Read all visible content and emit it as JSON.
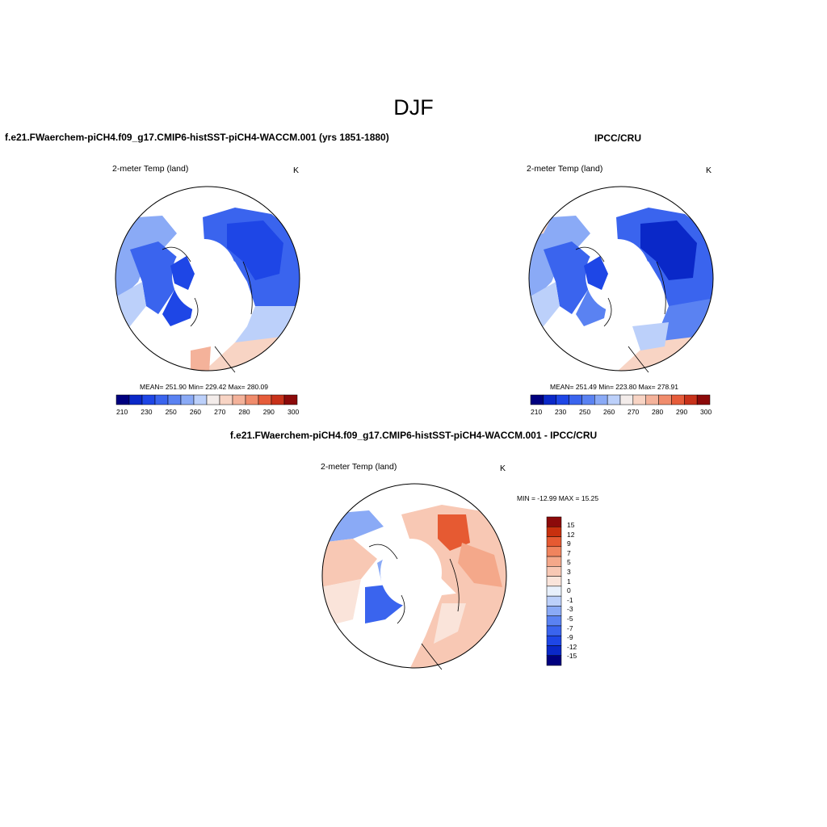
{
  "figure": {
    "title": "DJF",
    "panel_top_left": {
      "case_title": "f.e21.FWaerchem-piCH4.f09_g17.CMIP6-histSST-piCH4-WACCM.001 (yrs 1851-1880)",
      "variable": "2-meter Temp (land)",
      "units": "K",
      "stats": "MEAN= 251.90  Min= 229.42  Max= 280.09"
    },
    "panel_top_right": {
      "case_title": "IPCC/CRU",
      "variable": "2-meter Temp (land)",
      "units": "K",
      "stats": "MEAN= 251.49  Min= 223.80  Max= 278.91"
    },
    "panel_bottom": {
      "case_title": "f.e21.FWaerchem-piCH4.f09_g17.CMIP6-histSST-piCH4-WACCM.001 - IPCC/CRU",
      "variable": "2-meter Temp (land)",
      "units": "K",
      "stats": "MIN = -12.99 MAX =  15.25"
    }
  },
  "colors": {
    "abs_palette": [
      "#00007f",
      "#0a28c8",
      "#1e46e6",
      "#3a64ee",
      "#5a82f2",
      "#8aaaf6",
      "#bcd0fa",
      "#f3ecea",
      "#f8d4c4",
      "#f4b29a",
      "#f08c6c",
      "#e65c3a",
      "#c8321a",
      "#8c0a0a"
    ],
    "diff_palette": [
      "#00007f",
      "#0a28c8",
      "#1e46e6",
      "#3a64ee",
      "#5a82f2",
      "#8aaaf6",
      "#bcd0fa",
      "#e8f0fb",
      "#fae4da",
      "#f8c8b4",
      "#f4a88a",
      "#f0845e",
      "#e65a32",
      "#c8300e",
      "#8c0a0a"
    ]
  },
  "chart_data": [
    {
      "type": "heatmap",
      "title": "2-meter Temp (land)",
      "projection": "north-polar-stereographic",
      "units": "K",
      "mean": 251.9,
      "min": 229.42,
      "max": 280.09,
      "colorbar_levels": [
        205,
        210,
        220,
        230,
        240,
        250,
        255,
        260,
        265,
        270,
        275,
        280,
        290,
        300
      ],
      "colorbar_tick_labels": [
        "210",
        "230",
        "250",
        "260",
        "270",
        "280",
        "290",
        "300"
      ]
    },
    {
      "type": "heatmap",
      "title": "2-meter Temp (land)",
      "projection": "north-polar-stereographic",
      "units": "K",
      "mean": 251.49,
      "min": 223.8,
      "max": 278.91,
      "colorbar_levels": [
        205,
        210,
        220,
        230,
        240,
        250,
        255,
        260,
        265,
        270,
        275,
        280,
        290,
        300
      ],
      "colorbar_tick_labels": [
        "210",
        "230",
        "250",
        "260",
        "270",
        "280",
        "290",
        "300"
      ]
    },
    {
      "type": "heatmap",
      "title": "2-meter Temp (land)",
      "projection": "north-polar-stereographic",
      "units": "K",
      "min": -12.99,
      "max": 15.25,
      "colorbar_tick_labels": [
        "15",
        "12",
        "9",
        "7",
        "5",
        "3",
        "1",
        "0",
        "-1",
        "-3",
        "-5",
        "-7",
        "-9",
        "-12",
        "-15"
      ]
    }
  ]
}
